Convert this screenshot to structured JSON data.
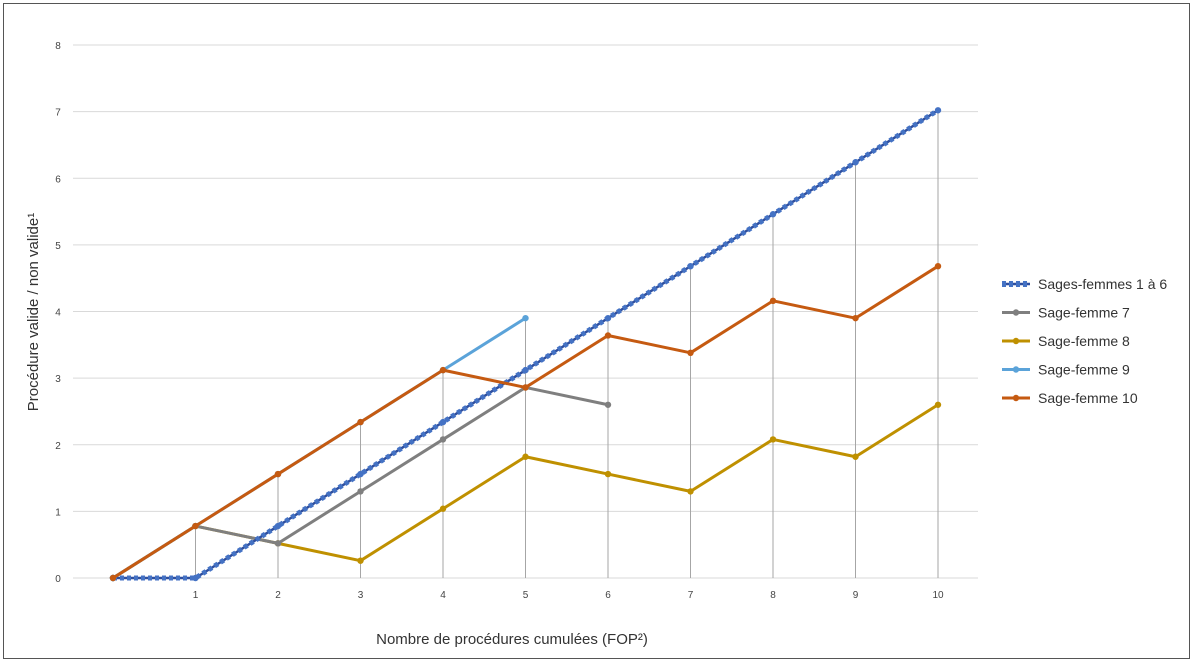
{
  "chart_data": {
    "type": "line",
    "title": "",
    "xlabel": "Nombre de procédures cumulées (FOP²)",
    "ylabel": "Procédure valide / non valide¹",
    "xlim": [
      0,
      10
    ],
    "ylim": [
      0,
      8
    ],
    "x_ticks": [
      "1",
      "2",
      "3",
      "4",
      "5",
      "6",
      "7",
      "8",
      "9",
      "10"
    ],
    "y_ticks": [
      "0",
      "1",
      "2",
      "3",
      "4",
      "5",
      "6",
      "7",
      "8"
    ],
    "grid": "horizontal",
    "vertical_drop_lines": true,
    "legend_position": "right",
    "series": [
      {
        "name": "Sages-femmes 1 à 6",
        "color": "#4472c4",
        "dashed": true,
        "x": [
          0,
          1,
          2,
          3,
          4,
          5,
          6,
          7,
          8,
          9,
          10
        ],
        "y": [
          0,
          0,
          0.78,
          1.56,
          2.34,
          3.12,
          3.9,
          4.68,
          5.46,
          6.24,
          7.02
        ]
      },
      {
        "name": "Sage-femme 7",
        "color": "#7f7f7f",
        "dashed": false,
        "x": [
          0,
          1,
          2,
          3,
          4,
          5,
          6
        ],
        "y": [
          0,
          0.78,
          0.52,
          1.3,
          2.08,
          2.86,
          2.6
        ]
      },
      {
        "name": "Sage-femme 8",
        "color": "#bf9000",
        "dashed": false,
        "x": [
          0,
          1,
          2,
          3,
          4,
          5,
          6,
          7,
          8,
          9,
          10
        ],
        "y": [
          0,
          0.78,
          0.52,
          0.26,
          1.04,
          1.82,
          1.56,
          1.3,
          2.08,
          1.82,
          2.6
        ]
      },
      {
        "name": "Sage-femme 9",
        "color": "#5ba3d9",
        "dashed": false,
        "x": [
          0,
          1,
          2,
          3,
          4,
          5
        ],
        "y": [
          0,
          0.78,
          1.56,
          2.34,
          3.12,
          3.9
        ]
      },
      {
        "name": "Sage-femme 10",
        "color": "#c55a11",
        "dashed": false,
        "x": [
          0,
          1,
          2,
          3,
          4,
          5,
          6,
          7,
          8,
          9,
          10
        ],
        "y": [
          0,
          0.78,
          1.56,
          2.34,
          3.12,
          2.86,
          3.64,
          3.38,
          4.16,
          3.9,
          4.68
        ]
      }
    ]
  }
}
